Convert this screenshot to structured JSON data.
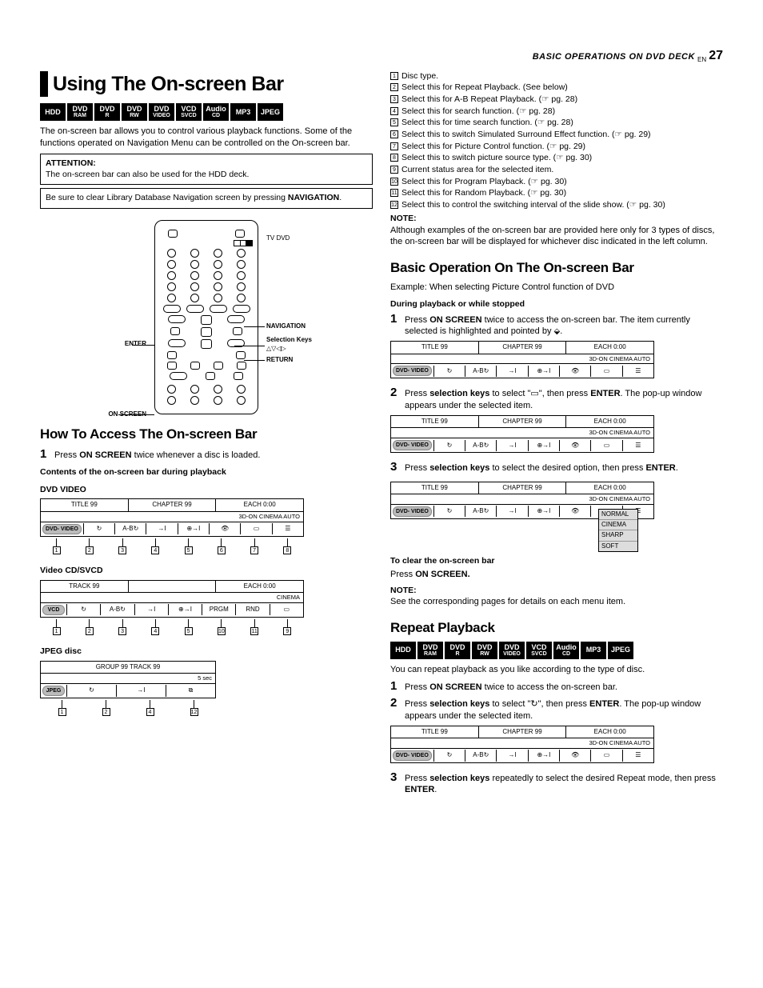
{
  "header": {
    "title": "BASIC OPERATIONS ON DVD DECK",
    "lang": "EN",
    "page": "27"
  },
  "main_title": "Using The On-screen Bar",
  "badges": [
    {
      "l1": "HDD"
    },
    {
      "l1": "DVD",
      "l2": "RAM"
    },
    {
      "l1": "DVD",
      "l2": "R"
    },
    {
      "l1": "DVD",
      "l2": "RW"
    },
    {
      "l1": "DVD",
      "l2": "VIDEO"
    },
    {
      "l1": "VCD",
      "l2": "SVCD"
    },
    {
      "l1": "Audio",
      "l2": "CD"
    },
    {
      "l1": "MP3"
    },
    {
      "l1": "JPEG"
    }
  ],
  "intro": "The on-screen bar allows you to control various playback functions. Some of the functions operated on Navigation Menu can be controlled on the On-screen bar.",
  "attention": {
    "label": "ATTENTION:",
    "text": "The on-screen bar can also be used for the HDD deck."
  },
  "note_box": {
    "pre": "Be sure to clear Library Database Navigation screen by pressing ",
    "bold": "NAVIGATION",
    "post": "."
  },
  "remote": {
    "tv_dvd": "TV       DVD",
    "enter": "ENTER",
    "navigation": "NAVIGATION",
    "sel_keys": "Selection Keys",
    "sel_sym": "△▽◁▷",
    "return": "RETURN",
    "on_screen": "ON SCREEN"
  },
  "sec_access": {
    "title": "How To Access The On-screen Bar",
    "step1": {
      "pre": "Press ",
      "b": "ON SCREEN",
      "post": " twice whenever a disc is loaded."
    },
    "contents_label": "Contents of the on-screen bar during playback",
    "dvd_label": "DVD VIDEO",
    "vcd_label": "Video CD/SVCD",
    "jpeg_label": "JPEG disc"
  },
  "osb_dvd": {
    "top": [
      "TITLE 99",
      "CHAPTER 99",
      "EACH 0:00"
    ],
    "mid": "3D-ON    CINEMA    AUTO",
    "disc": "DVD-\nVIDEO",
    "cells": [
      "↻",
      "A-B↻",
      "→I",
      "⊕→I",
      "👁",
      "▭",
      "☰"
    ],
    "callouts": [
      "1",
      "2",
      "3",
      "4",
      "5",
      "6",
      "7",
      "8"
    ]
  },
  "osb_vcd": {
    "top": [
      "TRACK 99",
      "",
      "EACH 0:00"
    ],
    "mid": "CINEMA",
    "disc": "VCD",
    "cells": [
      "↻",
      "A-B↻",
      "→I",
      "⊕→I",
      "PRGM",
      "RND",
      "▭"
    ],
    "callouts": [
      "1",
      "2",
      "3",
      "4",
      "5",
      "10",
      "11",
      "9"
    ]
  },
  "osb_jpeg": {
    "top": [
      "GROUP 99  TRACK 99"
    ],
    "mid": "5 sec",
    "disc": "JPEG",
    "cells": [
      "↻",
      "→I",
      "⧉"
    ],
    "callouts": [
      "1",
      "2",
      "4",
      "12"
    ]
  },
  "reflist": [
    {
      "n": "1",
      "t": "Disc type."
    },
    {
      "n": "2",
      "t": "Select this for Repeat Playback. (See below)"
    },
    {
      "n": "3",
      "t": "Select this for A-B Repeat Playback. (☞ pg. 28)"
    },
    {
      "n": "4",
      "t": "Select this for search function. (☞ pg. 28)"
    },
    {
      "n": "5",
      "t": "Select this for time search function. (☞ pg. 28)"
    },
    {
      "n": "6",
      "t": "Select this to switch Simulated Surround Effect function. (☞ pg. 29)"
    },
    {
      "n": "7",
      "t": "Select this for Picture Control function. (☞ pg. 29)"
    },
    {
      "n": "8",
      "t": "Select this to switch picture source type. (☞ pg. 30)"
    },
    {
      "n": "9",
      "t": "Current status area for the selected item."
    },
    {
      "n": "10",
      "t": "Select this for Program Playback. (☞ pg. 30)"
    },
    {
      "n": "11",
      "t": "Select this for Random Playback. (☞ pg. 30)"
    },
    {
      "n": "12",
      "t": "Select this to control the switching interval of the slide show. (☞ pg. 30)"
    }
  ],
  "note1": {
    "label": "NOTE:",
    "text": "Although examples of the on-screen bar are provided here only for 3 types of discs, the on-screen bar will be displayed for whichever disc indicated in the left column."
  },
  "sec_basic": {
    "title": "Basic Operation On The On-screen Bar",
    "example": "Example: When selecting Picture Control function of DVD",
    "during": "During playback or while stopped",
    "step1": {
      "pre": "Press ",
      "b1": "ON SCREEN",
      "mid": " twice to access the on-screen bar. The item currently selected is highlighted and pointed by ",
      "post": "."
    },
    "step2": {
      "pre": "Press ",
      "b1": "selection keys",
      "mid": " to select \"",
      "b2": "▭",
      "mid2": "\", then press ",
      "b3": "ENTER",
      "post": ". The pop-up window appears under the selected item."
    },
    "step3": {
      "pre": "Press ",
      "b1": "selection keys",
      "mid": " to select the desired option, then press ",
      "b2": "ENTER",
      "post": "."
    }
  },
  "dropdown": [
    "NORMAL",
    "CINEMA",
    "SHARP",
    "SOFT"
  ],
  "clear": {
    "label": "To clear the on-screen bar",
    "pre": "Press ",
    "b": "ON SCREEN."
  },
  "note2": {
    "label": "NOTE:",
    "text": "See the corresponding pages for details on each menu item."
  },
  "sec_repeat": {
    "title": "Repeat Playback",
    "intro": "You can repeat playback as you like according to the type of disc.",
    "step1": {
      "pre": "Press ",
      "b": "ON SCREEN",
      "post": " twice to access the on-screen bar."
    },
    "step2": {
      "pre": "Press ",
      "b1": "selection keys",
      "mid": " to select \"",
      "sym": "↻",
      "mid2": "\", then press ",
      "b2": "ENTER",
      "post": ". The pop-up window appears under the selected item."
    },
    "step3": {
      "pre": "Press ",
      "b1": "selection keys",
      "mid": " repeatedly to select the desired Repeat mode, then press ",
      "b2": "ENTER",
      "post": "."
    }
  },
  "colors": {
    "black": "#000000",
    "grey": "#bbbbbb",
    "lightgrey": "#dddddd"
  }
}
